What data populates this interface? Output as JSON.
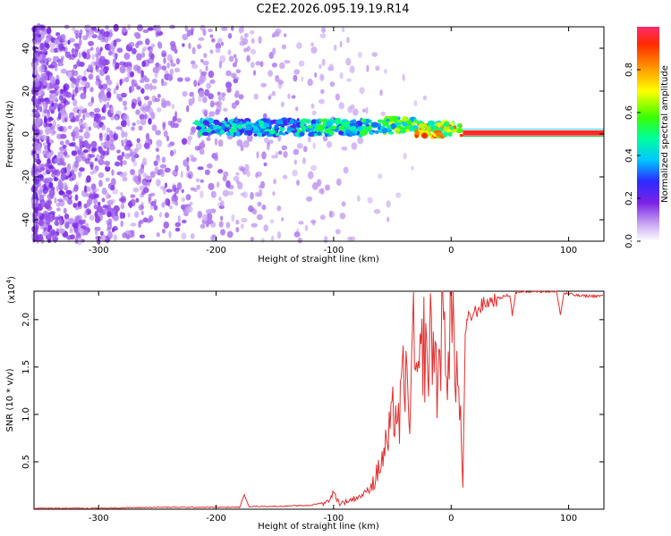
{
  "title": "C2E2.2026.095.19.19.R14",
  "colors": {
    "spectrum_low": "#7a22e6",
    "snr_line": "#e03030",
    "axis": "#000000"
  },
  "chart_data": [
    {
      "type": "heatmap",
      "xlabel": "Height of straight line (km)",
      "ylabel": "Frequency (Hz)",
      "xlim": [
        -355,
        130
      ],
      "ylim": [
        -50,
        50
      ],
      "x_ticks": [
        -300,
        -200,
        -100,
        0,
        100
      ],
      "y_ticks": [
        -40,
        -20,
        0,
        20,
        40
      ],
      "colorbar": {
        "label": "Normalized spectral amplitude",
        "range": [
          0,
          1
        ],
        "ticks": [
          "0.0",
          "0.2",
          "0.4",
          "0.6",
          "0.8"
        ],
        "tick_values": [
          0,
          0.2,
          0.4,
          0.6,
          0.8
        ]
      },
      "signal_segments": [
        {
          "x_start": -220,
          "x_end": -130,
          "freq": 3,
          "amplitude": 0.4
        },
        {
          "x_start": -130,
          "x_end": -60,
          "freq": 3,
          "amplitude": 0.45
        },
        {
          "x_start": -60,
          "x_end": -30,
          "freq": 4,
          "amplitude": 0.55
        },
        {
          "x_start": -30,
          "x_end": 10,
          "freq": 2,
          "amplitude": 0.75
        },
        {
          "x_start": 10,
          "x_end": 130,
          "freq": 0.5,
          "amplitude": 0.95
        }
      ],
      "noise_region": {
        "x_start": -355,
        "x_end": -130,
        "amplitude": 0.1
      }
    },
    {
      "type": "line",
      "xlabel": "Height of straight line (km)",
      "ylabel": "SNR (10 * v/v)",
      "y_multiplier": "(x10",
      "y_multiplier_exp": "4",
      "y_multiplier_close": ")",
      "xlim": [
        -355,
        130
      ],
      "ylim": [
        0,
        2.3
      ],
      "x_ticks": [
        -300,
        -200,
        -100,
        0,
        100
      ],
      "y_ticks": [
        0.5,
        1.0,
        1.5,
        2.0
      ],
      "y_tick_labels": [
        "0.5",
        "1.0",
        "1.5",
        "2.0"
      ],
      "series": [
        {
          "x": [
            -355,
            -300,
            -250,
            -200,
            -180,
            -176,
            -172,
            -150,
            -120,
            -105,
            -100,
            -95,
            -85,
            -75,
            -65,
            -58,
            -52,
            -48,
            -44,
            -40,
            -36,
            -32,
            -28,
            -24,
            -20,
            -16,
            -12,
            -8,
            -4,
            0,
            4,
            8,
            10,
            12,
            14,
            18,
            22,
            26,
            30,
            34,
            40,
            46,
            50,
            52,
            55,
            60,
            70,
            80,
            90,
            93,
            96,
            100,
            110,
            120,
            130
          ],
          "y": [
            0.01,
            0.01,
            0.02,
            0.02,
            0.02,
            0.15,
            0.03,
            0.03,
            0.04,
            0.08,
            0.18,
            0.06,
            0.1,
            0.15,
            0.3,
            0.55,
            0.8,
            1.1,
            0.9,
            1.5,
            1.0,
            1.7,
            1.2,
            1.8,
            1.5,
            1.9,
            1.3,
            2.0,
            1.6,
            2.05,
            1.6,
            0.9,
            0.25,
            1.8,
            2.0,
            2.05,
            2.1,
            2.15,
            2.18,
            2.2,
            2.22,
            2.25,
            2.26,
            2.05,
            2.28,
            2.3,
            2.3,
            2.3,
            2.29,
            2.05,
            2.28,
            2.27,
            2.25,
            2.25,
            2.25
          ]
        }
      ]
    }
  ]
}
